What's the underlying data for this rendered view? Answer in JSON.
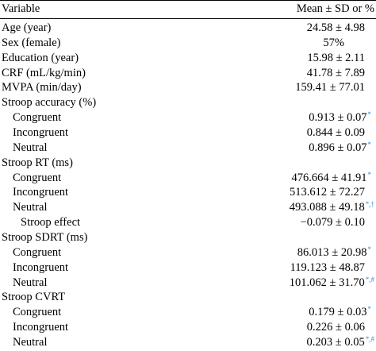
{
  "header": {
    "variable": "Variable",
    "value": "Mean ± SD or %"
  },
  "rows": [
    {
      "label": "Age (year)",
      "value": "24.58 ± 4.98",
      "mark": ""
    },
    {
      "label": "Sex (female)",
      "value": "57%",
      "mark": ""
    },
    {
      "label": "Education (year)",
      "value": "15.98 ± 2.11",
      "mark": ""
    },
    {
      "label": "CRF (mL/kg/min)",
      "value": "41.78 ± 7.89",
      "mark": ""
    },
    {
      "label": "MVPA (min/day)",
      "value": "159.41 ± 77.01",
      "mark": ""
    },
    {
      "label": "Stroop accuracy (%)",
      "value": "",
      "mark": ""
    },
    {
      "label": "Congruent",
      "value": "0.913 ± 0.07",
      "mark": "*"
    },
    {
      "label": "Incongruent",
      "value": "0.844 ± 0.09",
      "mark": ""
    },
    {
      "label": "Neutral",
      "value": "0.896 ± 0.07",
      "mark": "*"
    },
    {
      "label": "Stroop RT (ms)",
      "value": "",
      "mark": ""
    },
    {
      "label": "Congruent",
      "value": "476.664 ± 41.91",
      "mark": "*"
    },
    {
      "label": "Incongruent",
      "value": "513.612 ± 72.27",
      "mark": ""
    },
    {
      "label": "Neutral",
      "value": "493.088 ± 49.18",
      "mark": "*,†"
    },
    {
      "label": "Stroop effect",
      "value": "−0.079 ± 0.10",
      "mark": ""
    },
    {
      "label": "Stroop SDRT (ms)",
      "value": "",
      "mark": ""
    },
    {
      "label": "Congruent",
      "value": "86.013 ± 20.98",
      "mark": "*"
    },
    {
      "label": "Incongruent",
      "value": "119.123 ± 48.87",
      "mark": ""
    },
    {
      "label": "Neutral",
      "value": "101.062 ± 31.70",
      "mark": "*,#"
    },
    {
      "label": "Stroop CVRT",
      "value": "",
      "mark": ""
    },
    {
      "label": "Congruent",
      "value": "0.179 ± 0.03",
      "mark": "*"
    },
    {
      "label": "Incongruent",
      "value": "0.226 ± 0.06",
      "mark": ""
    },
    {
      "label": "Neutral",
      "value": "0.203 ± 0.05",
      "mark": "*,#"
    }
  ]
}
